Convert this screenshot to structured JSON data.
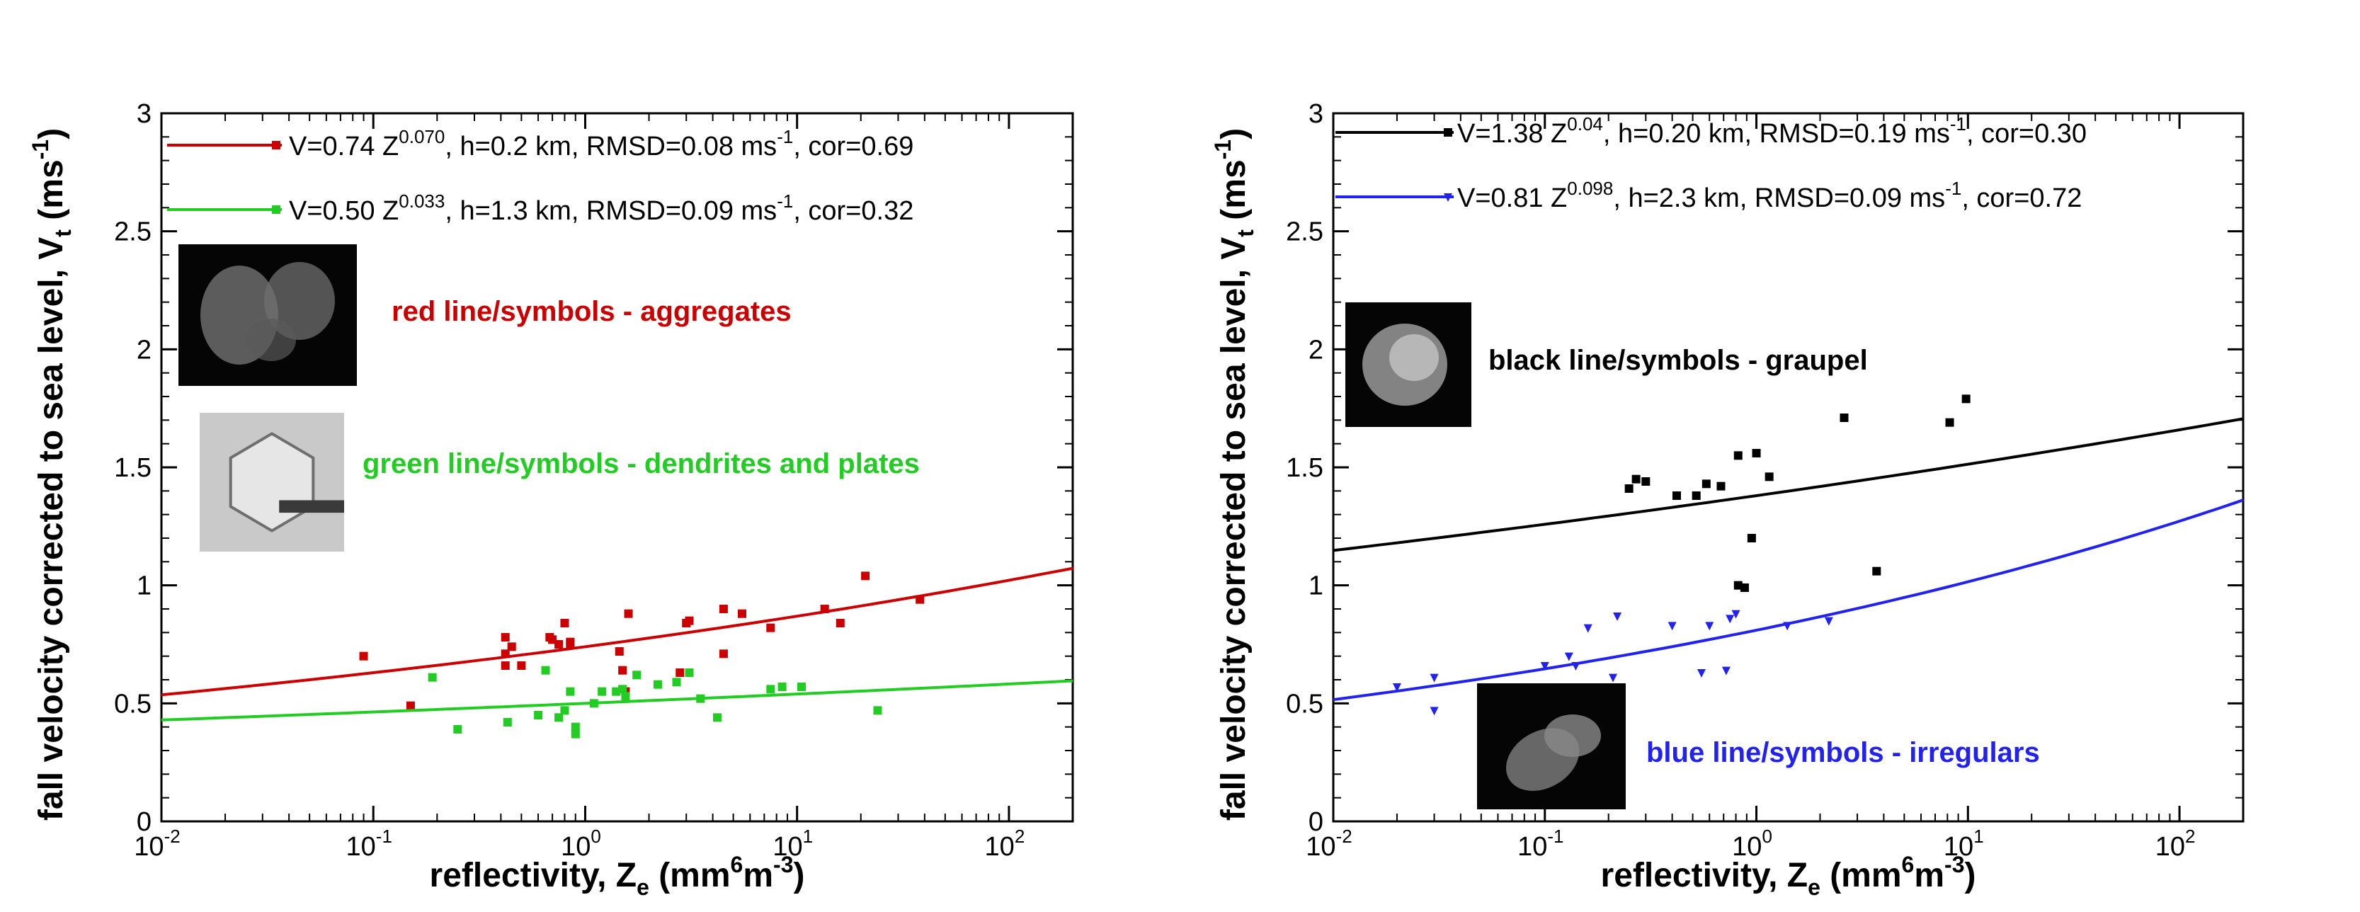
{
  "chart_data": [
    {
      "type": "scatter",
      "xscale": "log",
      "xlim": [
        0.01,
        200
      ],
      "ylim": [
        0,
        3
      ],
      "xlabel": {
        "main": "reflectivity, Z",
        "sub": "e",
        "open": " (mm",
        "sup": "6",
        "mid": "m",
        "sup2": "-3",
        "close": ")"
      },
      "ylabel": {
        "main": "fall velocity corrected to sea level, V",
        "sub": "t",
        "open": " (ms",
        "sup": "-1",
        "close": ")"
      },
      "yticks": [
        "0",
        "0.5",
        "1",
        "1.5",
        "2",
        "2.5",
        "3"
      ],
      "xtick_base": "10",
      "xtick_exponents": [
        "-2",
        "-1",
        "0",
        "1",
        "2"
      ],
      "series": [
        {
          "name": "aggregates",
          "color": "#cc0000",
          "marker": "square",
          "legend": {
            "a": "V=0.74 Z",
            "exp": "0.070",
            "b": ", h=0.2 km, RMSD=0.08 ms",
            "unit_exp": "-1",
            "c": ", cor=0.69"
          },
          "fit": {
            "a": 0.74,
            "b": 0.07
          },
          "points": [
            [
              0.09,
              0.7
            ],
            [
              0.15,
              0.49
            ],
            [
              0.42,
              0.78
            ],
            [
              0.42,
              0.71
            ],
            [
              0.45,
              0.74
            ],
            [
              0.5,
              0.66
            ],
            [
              0.42,
              0.66
            ],
            [
              0.68,
              0.78
            ],
            [
              0.7,
              0.77
            ],
            [
              0.75,
              0.75
            ],
            [
              0.8,
              0.84
            ],
            [
              0.85,
              0.75
            ],
            [
              0.85,
              0.76
            ],
            [
              1.45,
              0.72
            ],
            [
              1.5,
              0.64
            ],
            [
              1.6,
              0.88
            ],
            [
              1.55,
              0.55
            ],
            [
              2.8,
              0.63
            ],
            [
              3.1,
              0.85
            ],
            [
              3.0,
              0.84
            ],
            [
              4.5,
              0.71
            ],
            [
              4.5,
              0.9
            ],
            [
              5.5,
              0.88
            ],
            [
              7.5,
              0.82
            ],
            [
              13.5,
              0.9
            ],
            [
              16,
              0.84
            ],
            [
              21,
              1.04
            ],
            [
              38,
              0.94
            ]
          ]
        },
        {
          "name": "dendrites and plates",
          "color": "#22cc22",
          "marker": "square",
          "legend": {
            "a": "V=0.50 Z",
            "exp": "0.033",
            "b": ", h=1.3 km, RMSD=0.09 ms",
            "unit_exp": "-1",
            "c": ", cor=0.32"
          },
          "fit": {
            "a": 0.5,
            "b": 0.033
          },
          "points": [
            [
              0.19,
              0.61
            ],
            [
              0.25,
              0.39
            ],
            [
              0.43,
              0.42
            ],
            [
              0.6,
              0.45
            ],
            [
              0.65,
              0.64
            ],
            [
              0.75,
              0.44
            ],
            [
              0.8,
              0.47
            ],
            [
              0.85,
              0.55
            ],
            [
              0.9,
              0.4
            ],
            [
              0.9,
              0.37
            ],
            [
              1.1,
              0.5
            ],
            [
              1.2,
              0.55
            ],
            [
              1.4,
              0.55
            ],
            [
              1.5,
              0.56
            ],
            [
              1.55,
              0.53
            ],
            [
              1.75,
              0.62
            ],
            [
              2.2,
              0.58
            ],
            [
              2.7,
              0.59
            ],
            [
              3.1,
              0.63
            ],
            [
              3.5,
              0.52
            ],
            [
              4.2,
              0.44
            ],
            [
              7.5,
              0.56
            ],
            [
              8.5,
              0.57
            ],
            [
              10.5,
              0.57
            ],
            [
              24,
              0.47
            ]
          ]
        }
      ],
      "annotations": [
        {
          "text": "red line/symbols - aggregates",
          "color": "#cc0000"
        },
        {
          "text": "green line/symbols - dendrites and plates",
          "color": "#22cc22"
        }
      ]
    },
    {
      "type": "scatter",
      "xscale": "log",
      "xlim": [
        0.01,
        200
      ],
      "ylim": [
        0,
        3
      ],
      "xlabel": {
        "main": "reflectivity, Z",
        "sub": "e",
        "open": " (mm",
        "sup": "6",
        "mid": "m",
        "sup2": "-3",
        "close": ")"
      },
      "ylabel": {
        "main": "fall velocity corrected to sea level, V",
        "sub": "t",
        "open": " (ms",
        "sup": "-1",
        "close": ")"
      },
      "yticks": [
        "0",
        "0.5",
        "1",
        "1.5",
        "2",
        "2.5",
        "3"
      ],
      "xtick_base": "10",
      "xtick_exponents": [
        "-2",
        "-1",
        "0",
        "1",
        "2"
      ],
      "series": [
        {
          "name": "graupel",
          "color": "#000000",
          "marker": "square",
          "legend": {
            "a": "V=1.38 Z",
            "exp": "0.04",
            "b": ", h=0.20 km, RMSD=0.19 ms",
            "unit_exp": "-1",
            "c": ", cor=0.30"
          },
          "fit": {
            "a": 1.38,
            "b": 0.04
          },
          "points": [
            [
              0.25,
              1.41
            ],
            [
              0.27,
              1.45
            ],
            [
              0.3,
              1.44
            ],
            [
              0.42,
              1.38
            ],
            [
              0.52,
              1.38
            ],
            [
              0.58,
              1.43
            ],
            [
              0.68,
              1.42
            ],
            [
              0.82,
              1.55
            ],
            [
              0.82,
              1.0
            ],
            [
              0.88,
              0.99
            ],
            [
              0.95,
              1.2
            ],
            [
              1.0,
              1.56
            ],
            [
              1.15,
              1.46
            ],
            [
              2.6,
              1.71
            ],
            [
              3.7,
              1.06
            ],
            [
              8.2,
              1.69
            ],
            [
              9.8,
              1.79
            ]
          ]
        },
        {
          "name": "irregulars",
          "color": "#2222ee",
          "marker": "triangle-down",
          "legend": {
            "a": "V=0.81 Z",
            "exp": "0.098",
            "b": ", h=2.3 km, RMSD=0.09 ms",
            "unit_exp": "-1",
            "c": ", cor=0.72"
          },
          "fit": {
            "a": 0.81,
            "b": 0.098
          },
          "points": [
            [
              0.02,
              0.57
            ],
            [
              0.03,
              0.61
            ],
            [
              0.03,
              0.47
            ],
            [
              0.1,
              0.66
            ],
            [
              0.13,
              0.7
            ],
            [
              0.14,
              0.66
            ],
            [
              0.16,
              0.82
            ],
            [
              0.21,
              0.61
            ],
            [
              0.22,
              0.87
            ],
            [
              0.4,
              0.83
            ],
            [
              0.55,
              0.63
            ],
            [
              0.6,
              0.83
            ],
            [
              0.72,
              0.64
            ],
            [
              0.75,
              0.86
            ],
            [
              0.8,
              0.88
            ],
            [
              1.4,
              0.83
            ],
            [
              2.2,
              0.85
            ]
          ]
        }
      ],
      "annotations": [
        {
          "text": "black line/symbols - graupel",
          "color": "#000000"
        },
        {
          "text": "blue line/symbols - irregulars",
          "color": "#2222ee"
        }
      ]
    }
  ]
}
